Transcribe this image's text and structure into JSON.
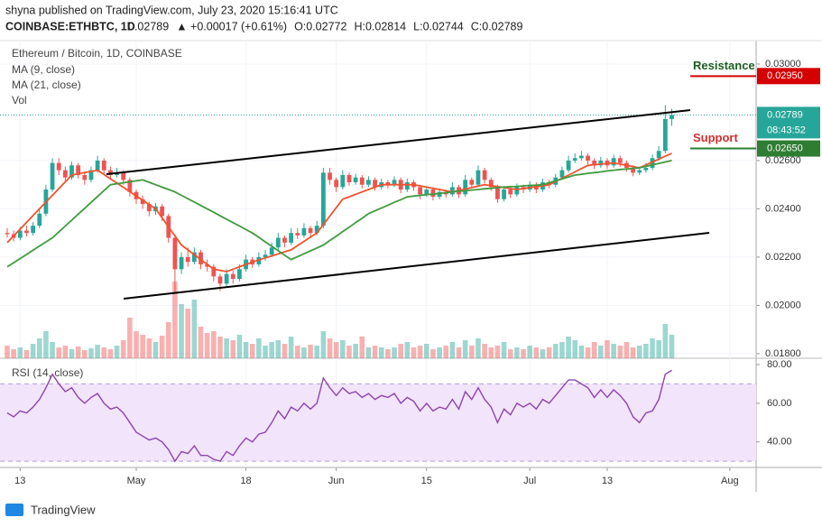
{
  "chart_data": {
    "type": "candlestick",
    "header": "shyna published on TradingView.com, July 23, 2020 15:16:41 UTC",
    "symbol": "COINBASE:ETHBTC, 1D",
    "quote": [
      "0.02789",
      "▲ +0.00017 (+0.61%)",
      "O:0.02772",
      "H:0.02814",
      "L:0.02744",
      "C:0.02789"
    ],
    "title": "Ethereum / Bitcoin, 1D, COINBASE",
    "up_color": "#26a69a",
    "down_color": "#ef5350",
    "ylim": [
      0.01781,
      0.03097
    ],
    "yticks": [
      {
        "value": 0.03,
        "label": "0.03000"
      },
      {
        "value": 0.026,
        "label": "0.02600"
      },
      {
        "value": 0.024,
        "label": "0.02400"
      },
      {
        "value": 0.022,
        "label": "0.02200"
      },
      {
        "value": 0.02,
        "label": "0.02000"
      },
      {
        "value": 0.018,
        "label": "0.01800"
      }
    ],
    "xlim": [
      -1.12,
      116.08
    ],
    "xticks": [
      {
        "value": 2,
        "label": "13"
      },
      {
        "value": 20,
        "label": "May"
      },
      {
        "value": 37,
        "label": "18"
      },
      {
        "value": 51,
        "label": "Jun"
      },
      {
        "value": 65,
        "label": "15"
      },
      {
        "value": 81,
        "label": "Jul"
      },
      {
        "value": 93,
        "label": "13"
      },
      {
        "value": 112,
        "label": "Aug"
      }
    ],
    "last_price": {
      "value": 0.02789,
      "label": "0.02789"
    },
    "countdown": "08:43:52",
    "annotations": [
      {
        "text": "Resistance",
        "value": 0.0295,
        "label": "0.02950",
        "color": "#d50000"
      },
      {
        "text": "Support",
        "value": 0.0265,
        "label": "0.02650",
        "color": "#2e7d32"
      }
    ],
    "ohlc": [
      [
        0.023,
        0.0232,
        0.0228,
        0.02295
      ],
      [
        0.02295,
        0.0231,
        0.02265,
        0.0228
      ],
      [
        0.0228,
        0.02325,
        0.0227,
        0.0231
      ],
      [
        0.0231,
        0.0233,
        0.02285,
        0.023
      ],
      [
        0.023,
        0.02345,
        0.0229,
        0.0233
      ],
      [
        0.0233,
        0.024,
        0.0232,
        0.0238
      ],
      [
        0.0238,
        0.025,
        0.0237,
        0.0248
      ],
      [
        0.0248,
        0.0261,
        0.0247,
        0.0259
      ],
      [
        0.0259,
        0.0261,
        0.0254,
        0.0256
      ],
      [
        0.0256,
        0.02575,
        0.0251,
        0.0253
      ],
      [
        0.0253,
        0.02595,
        0.0252,
        0.0258
      ],
      [
        0.0258,
        0.0259,
        0.02525,
        0.0254
      ],
      [
        0.0254,
        0.02555,
        0.025,
        0.0252
      ],
      [
        0.0252,
        0.02575,
        0.0251,
        0.0256
      ],
      [
        0.0256,
        0.0262,
        0.0255,
        0.026
      ],
      [
        0.026,
        0.0261,
        0.02545,
        0.0256
      ],
      [
        0.0256,
        0.02575,
        0.02525,
        0.0254
      ],
      [
        0.0254,
        0.0257,
        0.0253,
        0.0255
      ],
      [
        0.0255,
        0.0256,
        0.025,
        0.0252
      ],
      [
        0.0252,
        0.0253,
        0.0245,
        0.0247
      ],
      [
        0.0247,
        0.0248,
        0.0242,
        0.0244
      ],
      [
        0.0244,
        0.02455,
        0.024,
        0.0242
      ],
      [
        0.0242,
        0.0243,
        0.0237,
        0.0239
      ],
      [
        0.0239,
        0.02425,
        0.02375,
        0.0241
      ],
      [
        0.0241,
        0.0242,
        0.0235,
        0.0237
      ],
      [
        0.0237,
        0.0238,
        0.0226,
        0.0228
      ],
      [
        0.0228,
        0.0229,
        0.0205,
        0.0215
      ],
      [
        0.0215,
        0.0222,
        0.0213,
        0.022
      ],
      [
        0.022,
        0.0224,
        0.0216,
        0.0218
      ],
      [
        0.0218,
        0.0224,
        0.0217,
        0.0222
      ],
      [
        0.0222,
        0.0223,
        0.0215,
        0.0217
      ],
      [
        0.0217,
        0.0219,
        0.0214,
        0.0216
      ],
      [
        0.0216,
        0.0217,
        0.021,
        0.0212
      ],
      [
        0.0212,
        0.0213,
        0.0206,
        0.0209
      ],
      [
        0.0209,
        0.0215,
        0.0208,
        0.0213
      ],
      [
        0.0213,
        0.02145,
        0.0209,
        0.0211
      ],
      [
        0.0211,
        0.0217,
        0.021,
        0.0215
      ],
      [
        0.0215,
        0.0221,
        0.0214,
        0.0219
      ],
      [
        0.0219,
        0.022,
        0.02155,
        0.0217
      ],
      [
        0.0217,
        0.0222,
        0.0216,
        0.022
      ],
      [
        0.022,
        0.0223,
        0.02185,
        0.0221
      ],
      [
        0.0221,
        0.0226,
        0.022,
        0.0224
      ],
      [
        0.0224,
        0.023,
        0.0223,
        0.0228
      ],
      [
        0.0228,
        0.0229,
        0.0224,
        0.0226
      ],
      [
        0.0226,
        0.0232,
        0.0225,
        0.023
      ],
      [
        0.023,
        0.0232,
        0.02275,
        0.0229
      ],
      [
        0.0229,
        0.0234,
        0.0228,
        0.0232
      ],
      [
        0.0232,
        0.0233,
        0.02285,
        0.023
      ],
      [
        0.023,
        0.0235,
        0.0229,
        0.0233
      ],
      [
        0.0233,
        0.0257,
        0.0232,
        0.0255
      ],
      [
        0.0255,
        0.0257,
        0.025,
        0.0252
      ],
      [
        0.0252,
        0.0253,
        0.0247,
        0.0249
      ],
      [
        0.0249,
        0.0256,
        0.0248,
        0.0254
      ],
      [
        0.0254,
        0.0255,
        0.02495,
        0.0251
      ],
      [
        0.0251,
        0.02545,
        0.025,
        0.0253
      ],
      [
        0.0253,
        0.0254,
        0.02485,
        0.025
      ],
      [
        0.025,
        0.02535,
        0.0249,
        0.0252
      ],
      [
        0.0252,
        0.0253,
        0.02475,
        0.0249
      ],
      [
        0.0249,
        0.02525,
        0.0248,
        0.0251
      ],
      [
        0.0251,
        0.0252,
        0.02485,
        0.025
      ],
      [
        0.025,
        0.02535,
        0.0249,
        0.0252
      ],
      [
        0.0252,
        0.0253,
        0.02465,
        0.0248
      ],
      [
        0.0248,
        0.02525,
        0.0247,
        0.0251
      ],
      [
        0.0251,
        0.0252,
        0.02475,
        0.0249
      ],
      [
        0.0249,
        0.025,
        0.0244,
        0.0246
      ],
      [
        0.0246,
        0.02495,
        0.0245,
        0.0248
      ],
      [
        0.0248,
        0.0249,
        0.02435,
        0.0245
      ],
      [
        0.0245,
        0.02485,
        0.0244,
        0.0247
      ],
      [
        0.0247,
        0.0248,
        0.02445,
        0.0246
      ],
      [
        0.0246,
        0.0251,
        0.0245,
        0.0249
      ],
      [
        0.0249,
        0.025,
        0.02445,
        0.0246
      ],
      [
        0.0246,
        0.0254,
        0.0245,
        0.0252
      ],
      [
        0.0252,
        0.0253,
        0.02485,
        0.025
      ],
      [
        0.025,
        0.0258,
        0.0249,
        0.0256
      ],
      [
        0.0256,
        0.0257,
        0.02505,
        0.0252
      ],
      [
        0.0252,
        0.0253,
        0.02475,
        0.0249
      ],
      [
        0.0249,
        0.025,
        0.02425,
        0.0244
      ],
      [
        0.0244,
        0.02495,
        0.0243,
        0.0248
      ],
      [
        0.0248,
        0.0249,
        0.02445,
        0.0246
      ],
      [
        0.0246,
        0.02505,
        0.0245,
        0.0249
      ],
      [
        0.0249,
        0.025,
        0.02465,
        0.0248
      ],
      [
        0.0248,
        0.02515,
        0.0247,
        0.025
      ],
      [
        0.025,
        0.0251,
        0.02465,
        0.0248
      ],
      [
        0.0248,
        0.02525,
        0.0247,
        0.0251
      ],
      [
        0.0251,
        0.0252,
        0.02485,
        0.025
      ],
      [
        0.025,
        0.02545,
        0.0249,
        0.0253
      ],
      [
        0.0253,
        0.02575,
        0.0252,
        0.0256
      ],
      [
        0.0256,
        0.0262,
        0.0255,
        0.026
      ],
      [
        0.026,
        0.0263,
        0.0259,
        0.0261
      ],
      [
        0.0261,
        0.0264,
        0.026,
        0.0262
      ],
      [
        0.0262,
        0.0263,
        0.02585,
        0.026
      ],
      [
        0.026,
        0.0261,
        0.02565,
        0.0258
      ],
      [
        0.0258,
        0.02615,
        0.0257,
        0.026
      ],
      [
        0.026,
        0.0261,
        0.02565,
        0.0258
      ],
      [
        0.0258,
        0.02625,
        0.0257,
        0.0261
      ],
      [
        0.0261,
        0.0262,
        0.02575,
        0.0259
      ],
      [
        0.0259,
        0.026,
        0.02555,
        0.0257
      ],
      [
        0.0257,
        0.0258,
        0.02535,
        0.0255
      ],
      [
        0.0255,
        0.02575,
        0.0254,
        0.0256
      ],
      [
        0.0256,
        0.0259,
        0.0255,
        0.0257
      ],
      [
        0.0257,
        0.02625,
        0.0256,
        0.0261
      ],
      [
        0.0261,
        0.0266,
        0.026,
        0.0264
      ],
      [
        0.0264,
        0.0283,
        0.0263,
        0.02772
      ],
      [
        0.02772,
        0.02814,
        0.02744,
        0.02789
      ]
    ],
    "series": [
      {
        "name": "MA (9, close)",
        "color": "#f0532e",
        "values": [
          0.0226,
          0.02288,
          0.02316,
          0.02344,
          0.02372,
          0.024,
          0.02428,
          0.02456,
          0.02484,
          0.02512,
          0.0254,
          0.02545,
          0.0255,
          0.02555,
          0.0256,
          0.02542,
          0.02524,
          0.02507,
          0.02489,
          0.02471,
          0.02453,
          0.02436,
          0.02418,
          0.024,
          0.02363,
          0.02325,
          0.02288,
          0.0225,
          0.0223,
          0.0221,
          0.0219,
          0.0217,
          0.0215,
          0.02145,
          0.0214,
          0.0215,
          0.0216,
          0.0217,
          0.0218,
          0.02188,
          0.02197,
          0.02205,
          0.02213,
          0.02222,
          0.0223,
          0.02248,
          0.02265,
          0.02283,
          0.023,
          0.02335,
          0.0237,
          0.02405,
          0.0244,
          0.0245,
          0.0246,
          0.0247,
          0.0248,
          0.0249,
          0.025,
          0.025,
          0.025,
          0.025,
          0.025,
          0.025,
          0.02495,
          0.0249,
          0.02485,
          0.0248,
          0.02475,
          0.0247,
          0.02476,
          0.02482,
          0.02488,
          0.02494,
          0.025,
          0.02496,
          0.02492,
          0.02488,
          0.02484,
          0.0248,
          0.02484,
          0.02488,
          0.02492,
          0.02496,
          0.025,
          0.02513,
          0.02527,
          0.0254,
          0.02553,
          0.02567,
          0.0258,
          0.02583,
          0.02585,
          0.02588,
          0.0259,
          0.02585,
          0.0258,
          0.02575,
          0.0257,
          0.02582,
          0.02594,
          0.02606,
          0.02618,
          0.0263
        ]
      },
      {
        "name": "MA (21, close)",
        "color": "#3f9b3f",
        "values": [
          0.0216,
          0.02177,
          0.02194,
          0.02211,
          0.02229,
          0.02246,
          0.02263,
          0.0228,
          0.02304,
          0.02329,
          0.02353,
          0.02378,
          0.02402,
          0.02427,
          0.02451,
          0.02476,
          0.025,
          0.02504,
          0.02508,
          0.02512,
          0.02516,
          0.0252,
          0.0251,
          0.025,
          0.0249,
          0.0248,
          0.0247,
          0.02456,
          0.02442,
          0.02428,
          0.02414,
          0.024,
          0.02386,
          0.02371,
          0.02357,
          0.02343,
          0.02329,
          0.02314,
          0.023,
          0.02282,
          0.02263,
          0.02245,
          0.02227,
          0.02208,
          0.0219,
          0.02202,
          0.02214,
          0.02226,
          0.02238,
          0.0225,
          0.02269,
          0.02287,
          0.02306,
          0.02324,
          0.02343,
          0.02361,
          0.0238,
          0.02392,
          0.02403,
          0.02415,
          0.02427,
          0.02438,
          0.0245,
          0.02453,
          0.02456,
          0.02459,
          0.02461,
          0.02464,
          0.02467,
          0.0247,
          0.02473,
          0.02475,
          0.02478,
          0.0248,
          0.02483,
          0.02485,
          0.02488,
          0.0249,
          0.02492,
          0.02493,
          0.02495,
          0.02497,
          0.02498,
          0.025,
          0.02508,
          0.02516,
          0.02524,
          0.02532,
          0.0254,
          0.02543,
          0.02547,
          0.0255,
          0.02553,
          0.02557,
          0.0256,
          0.02563,
          0.02565,
          0.02568,
          0.0257,
          0.02576,
          0.02582,
          0.02588,
          0.02594,
          0.026
        ]
      }
    ],
    "volume": {
      "name": "Vol",
      "values": [
        14,
        10,
        12,
        9,
        16,
        22,
        30,
        18,
        12,
        14,
        10,
        13,
        9,
        11,
        15,
        12,
        10,
        14,
        20,
        45,
        30,
        26,
        22,
        18,
        25,
        40,
        85,
        60,
        55,
        65,
        35,
        28,
        30,
        24,
        22,
        20,
        26,
        18,
        16,
        22,
        14,
        18,
        20,
        16,
        24,
        14,
        12,
        15,
        14,
        30,
        22,
        18,
        20,
        14,
        16,
        24,
        12,
        14,
        12,
        10,
        12,
        16,
        18,
        12,
        14,
        16,
        10,
        12,
        14,
        18,
        12,
        20,
        14,
        22,
        16,
        12,
        14,
        18,
        10,
        12,
        10,
        14,
        12,
        10,
        12,
        16,
        18,
        24,
        20,
        14,
        12,
        18,
        14,
        20,
        16,
        14,
        18,
        12,
        14,
        16,
        22,
        20,
        38,
        26
      ]
    },
    "rsi": {
      "name": "RSI (14, close)",
      "color": "#8e44ad",
      "band": [
        30,
        70
      ],
      "band_color": "#f1e4fb",
      "ylim": [
        26.8,
        82.8
      ],
      "yticks": [
        {
          "value": 80,
          "label": "80.00"
        },
        {
          "value": 60,
          "label": "60.00"
        },
        {
          "value": 40,
          "label": "40.00"
        }
      ],
      "values": [
        55,
        53,
        56,
        55,
        58,
        62,
        68,
        75,
        70,
        66,
        68,
        63,
        60,
        63,
        65,
        60,
        57,
        58,
        55,
        50,
        45,
        43,
        41,
        42,
        40,
        36,
        30,
        35,
        34,
        38,
        33,
        33,
        31,
        30,
        35,
        33,
        38,
        42,
        40,
        44,
        45,
        50,
        56,
        52,
        58,
        56,
        60,
        57,
        60,
        73,
        68,
        64,
        68,
        65,
        66,
        63,
        65,
        62,
        64,
        63,
        65,
        60,
        63,
        61,
        56,
        60,
        56,
        58,
        57,
        62,
        57,
        66,
        62,
        68,
        62,
        58,
        50,
        57,
        54,
        60,
        58,
        60,
        57,
        62,
        60,
        64,
        68,
        72,
        72,
        70,
        68,
        63,
        67,
        63,
        67,
        64,
        60,
        53,
        50,
        55,
        56,
        62,
        75,
        77
      ]
    },
    "footer": "TradingView"
  }
}
